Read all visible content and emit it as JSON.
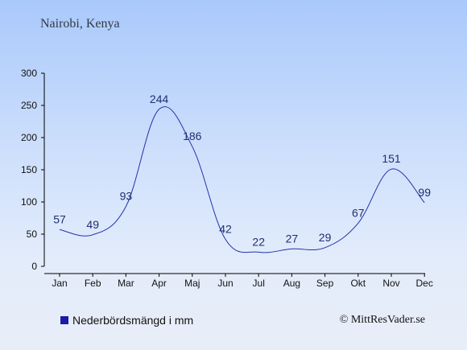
{
  "title": "Nairobi, Kenya",
  "legend": {
    "label": "Nederbördsmängd i mm"
  },
  "credit": "© MittResVader.se",
  "colors": {
    "line": "#2233aa",
    "swatch": "#1a1aa6",
    "axis": "#000000"
  },
  "chart_data": {
    "type": "line",
    "title": "Nairobi, Kenya",
    "categories": [
      "Jan",
      "Feb",
      "Mar",
      "Apr",
      "Maj",
      "Jun",
      "Jul",
      "Aug",
      "Sep",
      "Okt",
      "Nov",
      "Dec"
    ],
    "series": [
      {
        "name": "Nederbördsmängd i mm",
        "values": [
          57,
          49,
          93,
          244,
          186,
          42,
          22,
          27,
          29,
          67,
          151,
          99
        ]
      }
    ],
    "ylim": [
      0,
      300
    ],
    "yticks": [
      0,
      50,
      100,
      150,
      200,
      250,
      300
    ],
    "grid": false,
    "legend_position": "bottom-left"
  }
}
